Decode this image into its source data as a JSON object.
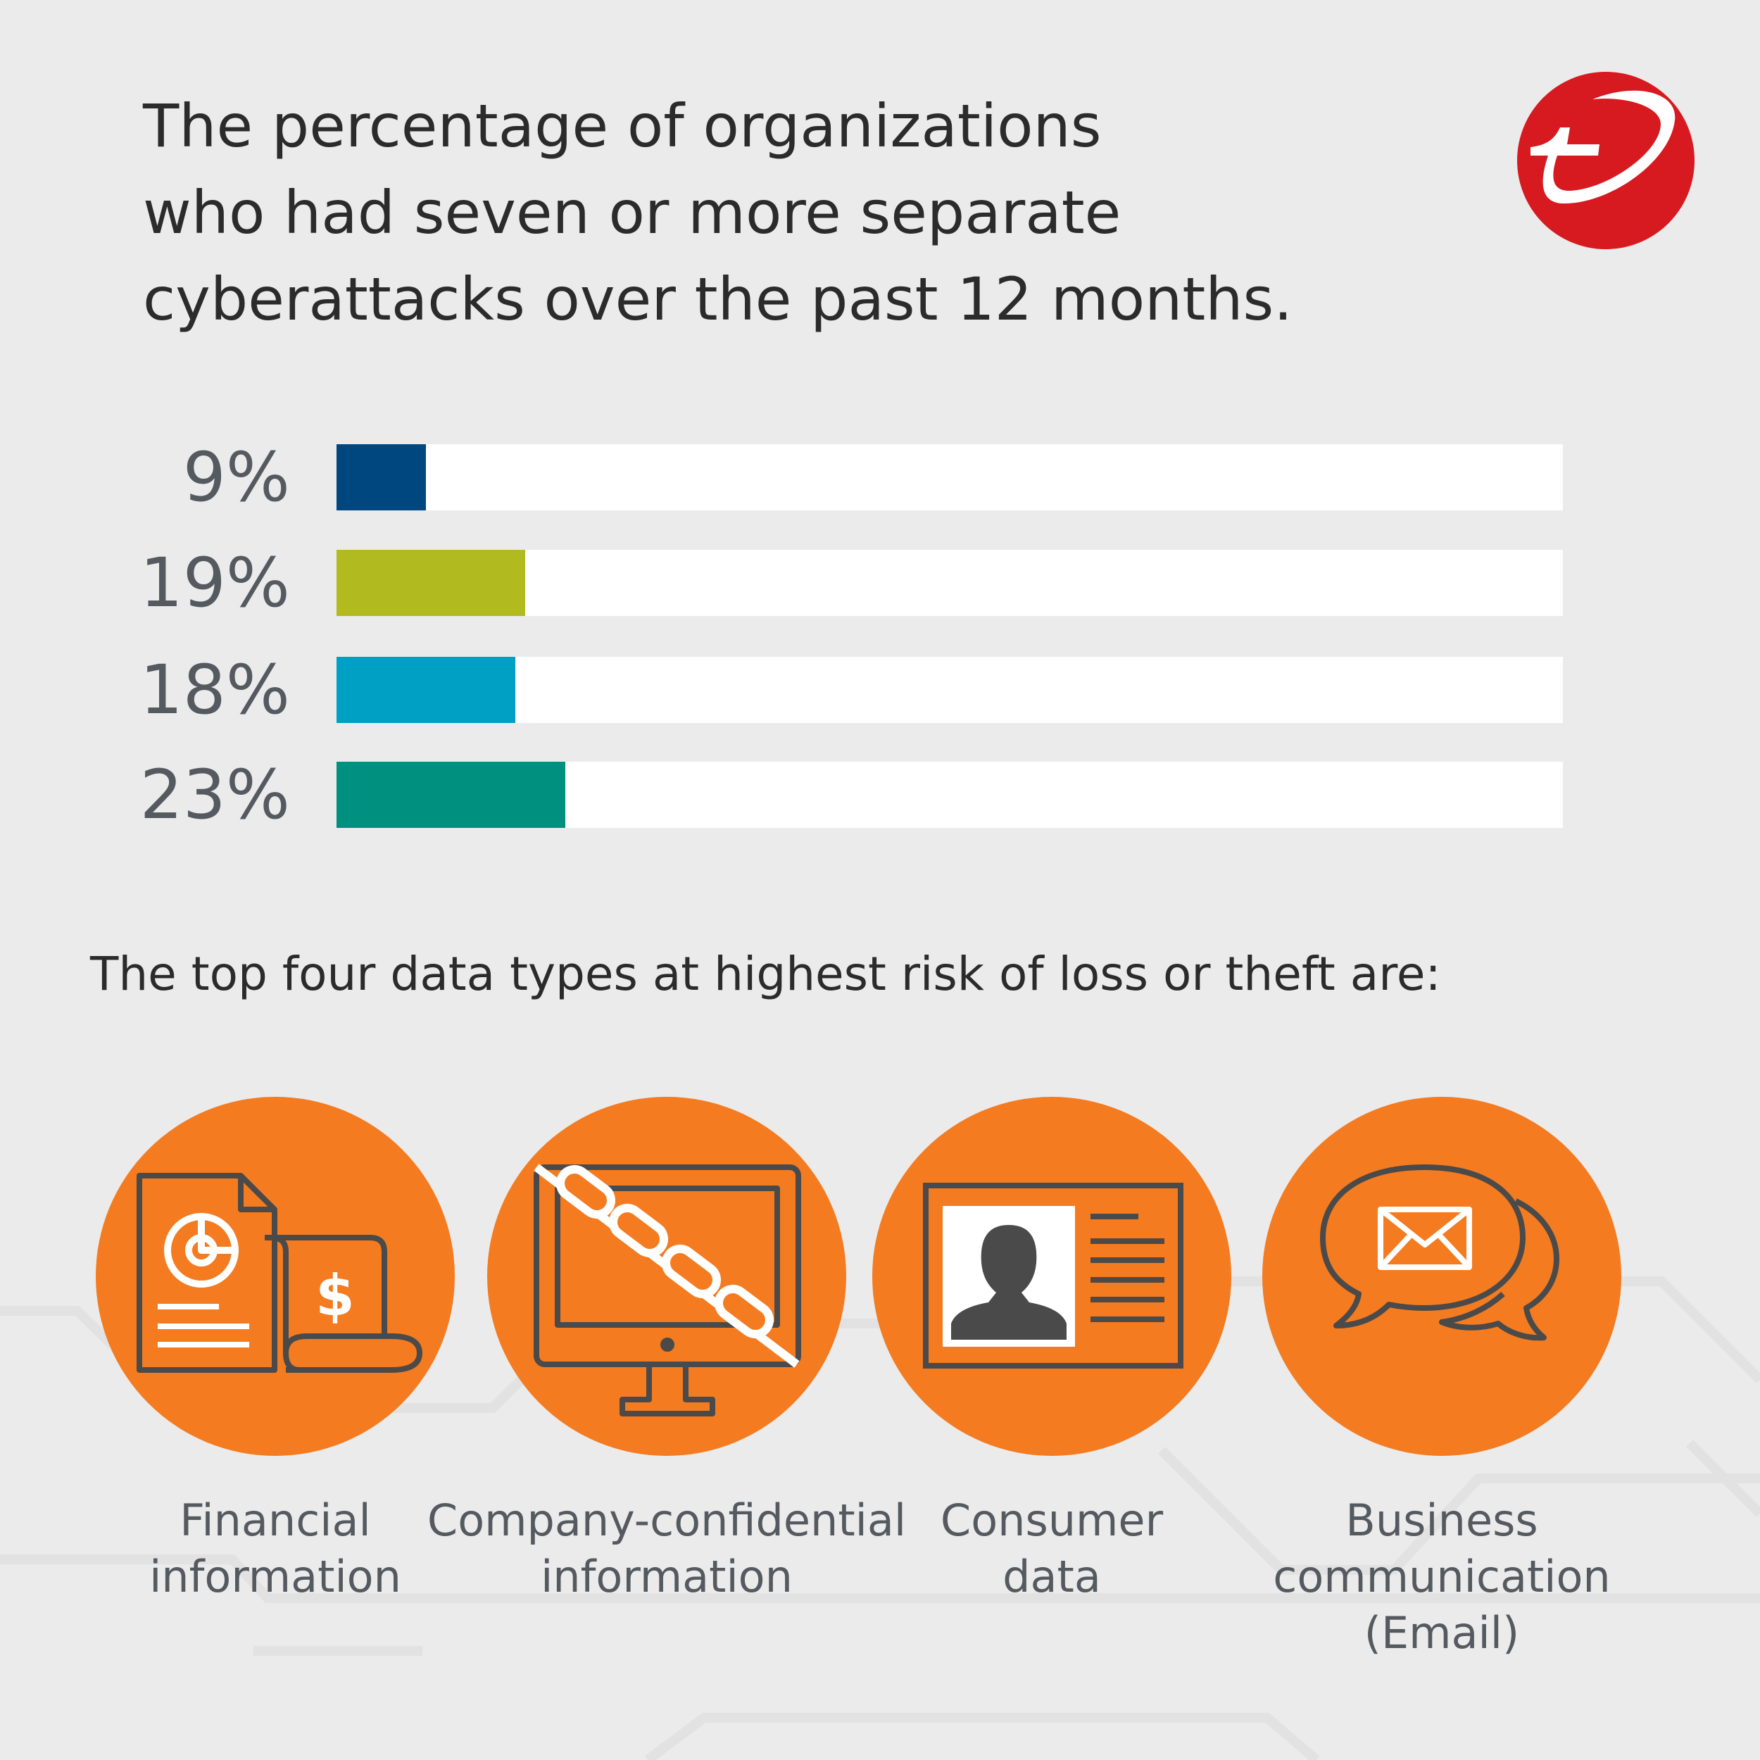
{
  "title": {
    "lines": [
      "The percentage of organizations",
      "who had seven or more separate",
      "cyberattacks over the past 12 months."
    ]
  },
  "logo": {
    "name": "trend-micro-logo",
    "color": "#d71920"
  },
  "chart_data": {
    "type": "bar",
    "orientation": "horizontal",
    "title": "The percentage of organizations who had seven or more separate cyberattacks over the past 12 months.",
    "categories": [
      "",
      "",
      "",
      ""
    ],
    "values": [
      9,
      19,
      18,
      23
    ],
    "labels": [
      "9%",
      "19%",
      "18%",
      "23%"
    ],
    "colors": [
      "#00467f",
      "#b1bb1f",
      "#00a0c4",
      "#00907f"
    ],
    "track_color": "#ffffff",
    "xlim": [
      0,
      100
    ],
    "grid": false
  },
  "subtitle": "The top four data types at highest risk of loss or theft are:",
  "data_types": [
    {
      "icon": "financial-document-icon",
      "lines": [
        "Financial",
        "information"
      ]
    },
    {
      "icon": "locked-monitor-icon",
      "lines": [
        "Company-confidential",
        "information"
      ]
    },
    {
      "icon": "id-card-icon",
      "lines": [
        "Consumer",
        "data"
      ]
    },
    {
      "icon": "email-chat-icon",
      "lines": [
        "Business",
        "communication",
        "(Email)"
      ]
    }
  ],
  "colors": {
    "accent": "#f47b20",
    "icon_stroke": "#4a4a4a",
    "background": "#ebebeb"
  }
}
